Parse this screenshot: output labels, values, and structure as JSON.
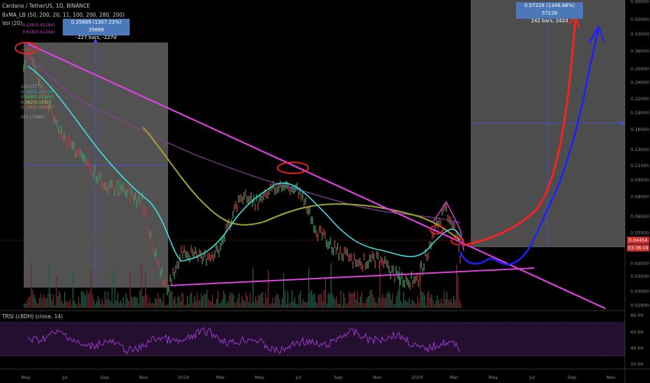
{
  "header": {
    "title": "Cardano / TetherUS, 1D, BINANCE",
    "indicator_ma": "8xMA_LB (50, 200, 20, 11, 100, 200, 280, 200)",
    "indicator_vol": "Vol (20)",
    "indicator_rsi": "TRSI (c8DH) (close, 14)"
  },
  "measure_boxes": [
    {
      "line1": "0.35689 (1307.23%) 35689",
      "line2": "-227 bars, -227d"
    },
    {
      "line1": "0.57226 (1346.88%) 57226",
      "line2": "242 bars, 242d"
    }
  ],
  "price_tags": {
    "last_price": "0.04454",
    "countdown": "03:36:19"
  },
  "fib_labels": [
    "4.236(0.45194)",
    "3.618(0.41294)",
    "2.618",
    "1(0.23772)",
    "0.786(0.22104)",
    "0.618(0.22104)",
    "0.382(0.1951)",
    "0.236(0.18035)",
    "0(0.17089)"
  ],
  "colors": {
    "background": "#000000",
    "trendline": "#e040e0",
    "projection_red": "#ff2020",
    "projection_blue": "#2020ff",
    "ma_cyan": "#40e0e0",
    "ma_olive": "#9a9a30",
    "ma_purple": "#8a40a0",
    "price_tag": "#d03030"
  },
  "chart_data": {
    "type": "line",
    "title": "Cardano / TetherUS, 1D, BINANCE",
    "y_scale": "log",
    "y_ticks": [
      0.6,
      0.5,
      0.43,
      0.36,
      0.3,
      0.26,
      0.22,
      0.19,
      0.16,
      0.13,
      0.11,
      0.095,
      0.08,
      0.065,
      0.055,
      0.047,
      0.04,
      0.035,
      0.03,
      0.026
    ],
    "x_ticks": [
      "May",
      "Jul",
      "Sep",
      "Nov",
      "2019",
      "Mar",
      "May",
      "Jul",
      "Sep",
      "Nov",
      "2020",
      "Mar",
      "May",
      "Jul",
      "Sep",
      "Nov"
    ],
    "series": [
      {
        "x": [
          "2018-05-01",
          "2018-05-10",
          "2018-06-01",
          "2018-07-01",
          "2018-08-01",
          "2018-09-01",
          "2018-10-01",
          "2018-11-01",
          "2018-11-20",
          "2018-12-10",
          "2019-01-01",
          "2019-02-01",
          "2019-03-01",
          "2019-04-01",
          "2019-05-01",
          "2019-06-01",
          "2019-07-01",
          "2019-08-01",
          "2019-09-01",
          "2019-10-01",
          "2019-11-01",
          "2019-12-01",
          "2020-01-01",
          "2020-02-01",
          "2020-02-15",
          "2020-03-01",
          "2020-03-08"
        ],
        "y": [
          0.3,
          0.37,
          0.23,
          0.15,
          0.12,
          0.09,
          0.085,
          0.077,
          0.045,
          0.03,
          0.046,
          0.042,
          0.046,
          0.08,
          0.075,
          0.09,
          0.085,
          0.055,
          0.045,
          0.04,
          0.042,
          0.035,
          0.033,
          0.06,
          0.07,
          0.055,
          0.044
        ]
      }
    ],
    "projections": [
      {
        "x": [
          "2020-03-10",
          "2020-06-01",
          "2020-08-01",
          "2020-09-01",
          "2020-09-20"
        ],
        "y": [
          0.047,
          0.06,
          0.15,
          0.4,
          0.52
        ]
      },
      {
        "x": [
          "2020-03-10",
          "2020-04-01",
          "2020-05-01",
          "2020-06-01",
          "2020-07-01",
          "2020-08-15",
          "2020-09-15",
          "2020-10-01",
          "2020-10-20"
        ],
        "y": [
          0.036,
          0.034,
          0.032,
          0.035,
          0.06,
          0.14,
          0.3,
          0.4,
          0.46
        ]
      }
    ],
    "rsi_ticks": [
      80,
      60,
      40,
      20
    ],
    "grid": false,
    "legend": "none"
  }
}
